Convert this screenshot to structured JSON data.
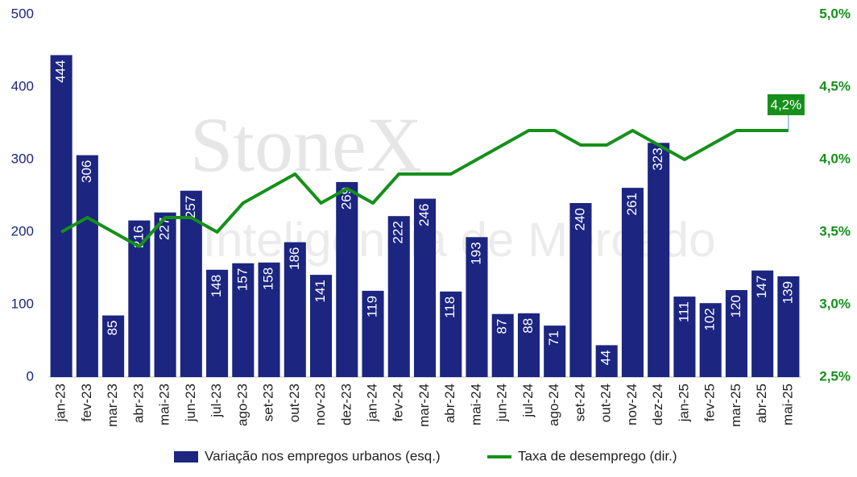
{
  "chart_data": {
    "type": "bar-line",
    "watermark": [
      "StoneX",
      "Inteligência de Mercado"
    ],
    "categories": [
      "jan-23",
      "fev-23",
      "mar-23",
      "abr-23",
      "mai-23",
      "jun-23",
      "jul-23",
      "ago-23",
      "set-23",
      "out-23",
      "nov-23",
      "dez-23",
      "jan-24",
      "fev-24",
      "mar-24",
      "abr-24",
      "mai-24",
      "jun-24",
      "jul-24",
      "ago-24",
      "set-24",
      "out-24",
      "nov-24",
      "dez-24",
      "jan-25",
      "fev-25",
      "mar-25",
      "abr-25",
      "mai-25"
    ],
    "series": [
      {
        "name": "Variação nos empregos urbanos (esq.)",
        "type": "bar",
        "color": "#1c2580",
        "values": [
          444,
          306,
          85,
          216,
          227,
          257,
          148,
          157,
          158,
          186,
          141,
          269,
          119,
          222,
          246,
          118,
          193,
          87,
          88,
          71,
          240,
          44,
          261,
          323,
          111,
          102,
          120,
          147,
          139
        ]
      },
      {
        "name": "Taxa de desemprego (dir.)",
        "type": "line",
        "axis": "y2",
        "color": "#15901a",
        "values": [
          3.5,
          3.6,
          3.5,
          3.4,
          3.6,
          3.6,
          3.5,
          3.7,
          3.8,
          3.9,
          3.7,
          3.8,
          3.7,
          3.9,
          3.9,
          3.9,
          4.0,
          4.1,
          4.2,
          4.2,
          4.1,
          4.1,
          4.2,
          4.1,
          4.0,
          4.1,
          4.2,
          4.2,
          4.2
        ]
      }
    ],
    "annotation": "4,2%",
    "ylim": [
      0,
      500
    ],
    "yticks": [
      0,
      100,
      200,
      300,
      400,
      500
    ],
    "y2lim": [
      2.5,
      5.0
    ],
    "y2ticks": [
      {
        "value": 2.5,
        "label": "2,5%"
      },
      {
        "value": 3.0,
        "label": "3,0%"
      },
      {
        "value": 3.5,
        "label": "3,5%"
      },
      {
        "value": 4.0,
        "label": "4,0%"
      },
      {
        "value": 4.5,
        "label": "4,5%"
      },
      {
        "value": 5.0,
        "label": "5,0%"
      }
    ],
    "legend": "bottom"
  }
}
